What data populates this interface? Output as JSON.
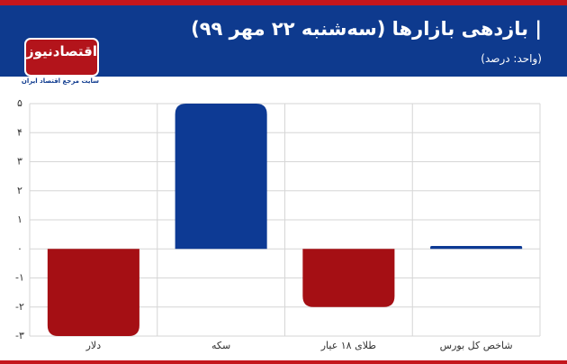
{
  "title": "| بازدهی بازارها (سه‌شنبه ۲۲ مهر ۹۹)",
  "subtitle": "(واحد: درصد)",
  "logo": {
    "name": "اقتصادنیوز",
    "tagline": "سایت مرجع اقتصاد ایران"
  },
  "chart_data": {
    "type": "bar",
    "categories": [
      "دلار",
      "سکه",
      "طلای ۱۸ عیار",
      "شاخص کل بورس"
    ],
    "values": [
      -3,
      5,
      -2,
      0.1
    ],
    "colors": [
      "#a50f14",
      "#0d3a94",
      "#a50f14",
      "#0d3a94"
    ],
    "ylim": [
      -3,
      5
    ],
    "yticks": [
      {
        "value": 5,
        "label": "۵"
      },
      {
        "value": 4,
        "label": "۴"
      },
      {
        "value": 3,
        "label": "۳"
      },
      {
        "value": 2,
        "label": "۲"
      },
      {
        "value": 1,
        "label": "۱"
      },
      {
        "value": 0,
        "label": "۰"
      },
      {
        "value": -1,
        "label": "-۱"
      },
      {
        "value": -2,
        "label": "-۲"
      },
      {
        "value": -3,
        "label": "-۳"
      }
    ],
    "grid": true
  }
}
